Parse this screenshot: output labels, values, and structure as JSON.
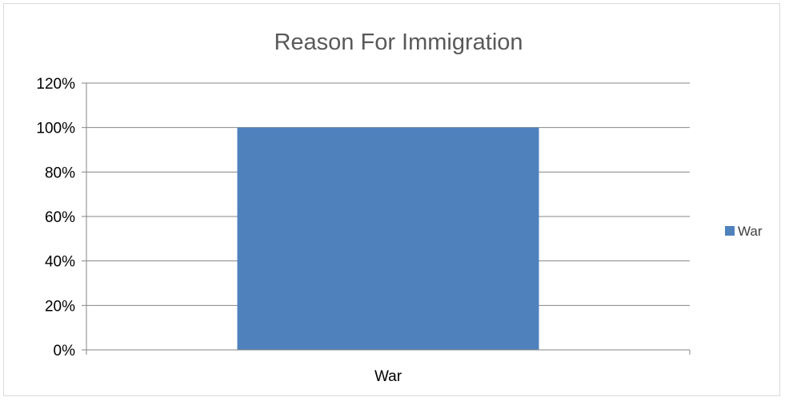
{
  "chart_data": {
    "type": "bar",
    "title": "Reason For Immigration",
    "categories": [
      "War"
    ],
    "series": [
      {
        "name": "War",
        "values": [
          1.0
        ],
        "color": "#4f81bd"
      }
    ],
    "xlabel": "",
    "ylabel": "",
    "ylim": [
      0,
      1.2
    ],
    "yticks": [
      {
        "value": 0,
        "label": "0%"
      },
      {
        "value": 0.2,
        "label": "20%"
      },
      {
        "value": 0.4,
        "label": "40%"
      },
      {
        "value": 0.6,
        "label": "60%"
      },
      {
        "value": 0.8,
        "label": "80%"
      },
      {
        "value": 1.0,
        "label": "100%"
      },
      {
        "value": 1.2,
        "label": "120%"
      }
    ],
    "grid": true,
    "legend_position": "right",
    "gridline_color": "#868686",
    "axis_color": "#868686"
  }
}
